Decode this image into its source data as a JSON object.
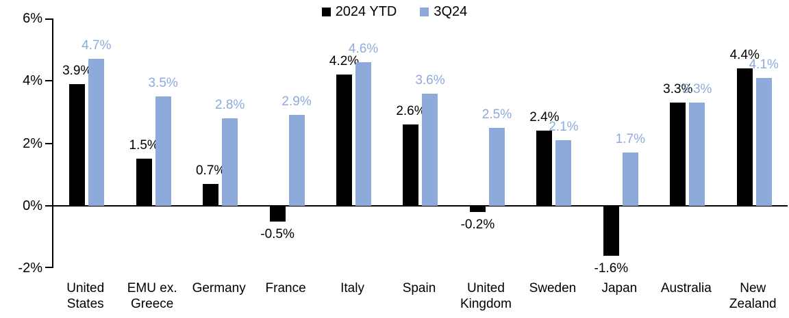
{
  "page": {
    "background": "#ffffff"
  },
  "chart_data": {
    "type": "bar",
    "title": "",
    "legend_position": "top-center",
    "grid": false,
    "categories": [
      "United States",
      "EMU ex. Greece",
      "Germany",
      "France",
      "Italy",
      "Spain",
      "United Kingdom",
      "Sweden",
      "Japan",
      "Australia",
      "New Zealand"
    ],
    "series": [
      {
        "name": "2024 YTD",
        "color": "#000000",
        "values": [
          3.9,
          1.5,
          0.7,
          -0.5,
          4.2,
          2.6,
          -0.2,
          2.4,
          -1.6,
          3.3,
          4.4
        ],
        "labels": [
          "3.9%",
          "1.5%",
          "0.7%",
          "-0.5%",
          "4.2%",
          "2.6%",
          "-0.2%",
          "2.4%",
          "-1.6%",
          "3.3%",
          "4.4%"
        ]
      },
      {
        "name": "3Q24",
        "color": "#8EAADB",
        "values": [
          4.7,
          3.5,
          2.8,
          2.9,
          4.6,
          3.6,
          2.5,
          2.1,
          1.7,
          3.3,
          4.1
        ],
        "labels": [
          "4.7%",
          "3.5%",
          "2.8%",
          "2.9%",
          "4.6%",
          "3.6%",
          "2.5%",
          "2.1%",
          "1.7%",
          "3.3%",
          "4.1%"
        ]
      }
    ],
    "y_axis": {
      "min": -2,
      "max": 6,
      "tick_step": 2,
      "tick_labels": [
        "6%",
        "4%",
        "2%",
        "0%",
        "-2%"
      ]
    },
    "axis_color": "#000000"
  }
}
